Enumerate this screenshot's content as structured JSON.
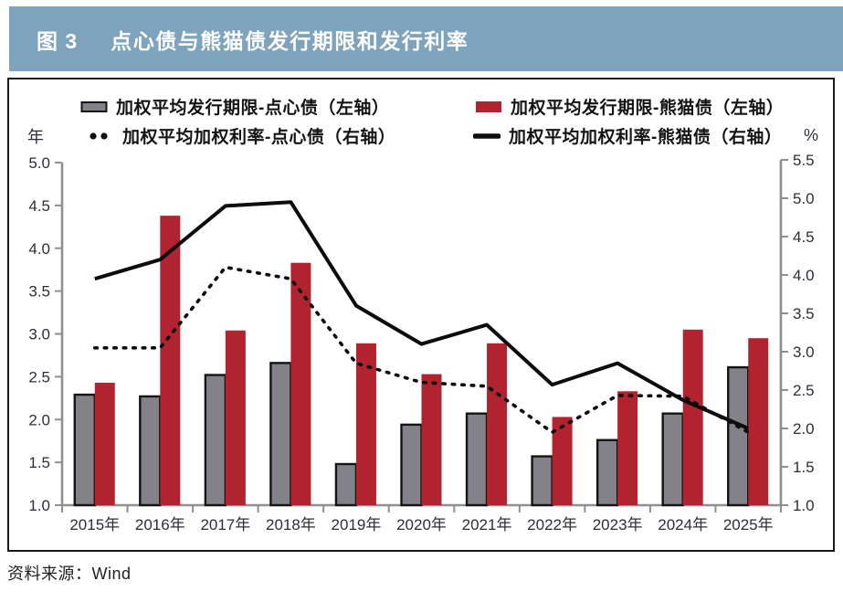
{
  "header": {
    "prefix": "图 3",
    "title": "点心债与熊猫债发行期限和发行利率",
    "bg_color": "#7DA3BD",
    "text_color": "#ffffff"
  },
  "source": {
    "label": "资料来源：Wind"
  },
  "chart_data": {
    "type": "bar+line",
    "title": "点心债与熊猫债发行期限和发行利率",
    "categories": [
      "2015年",
      "2016年",
      "2017年",
      "2018年",
      "2019年",
      "2020年",
      "2021年",
      "2022年",
      "2023年",
      "2024年",
      "2025年"
    ],
    "left_axis": {
      "unit": "年",
      "min": 1.0,
      "max": 5.0,
      "step": 0.5
    },
    "right_axis": {
      "unit": "%",
      "min": 1.0,
      "max": 5.5,
      "step": 0.5
    },
    "grid": false,
    "legend_position": "top",
    "series": [
      {
        "key": "dimsum-tenor",
        "name": "加权平均发行期限-点心债（左轴）",
        "type": "bar",
        "axis": "left",
        "color": "#828288",
        "outline": "#141414",
        "values": [
          2.29,
          2.27,
          2.52,
          2.66,
          1.48,
          1.94,
          2.07,
          1.57,
          1.76,
          2.07,
          2.61
        ]
      },
      {
        "key": "panda-tenor",
        "name": "加权平均发行期限-熊猫债（左轴）",
        "type": "bar",
        "axis": "left",
        "color": "#B1242F",
        "values": [
          2.43,
          4.38,
          3.04,
          3.83,
          2.89,
          2.53,
          2.89,
          2.03,
          2.33,
          3.05,
          2.95
        ]
      },
      {
        "key": "dimsum-rate",
        "name": "加权平均加权利率-点心债（右轴）",
        "type": "line",
        "line_style": "dashed",
        "axis": "right",
        "color": "#0d0d0d",
        "values": [
          3.05,
          3.05,
          4.1,
          3.95,
          2.85,
          2.6,
          2.55,
          1.95,
          2.43,
          2.42,
          1.95
        ]
      },
      {
        "key": "panda-rate",
        "name": "加权平均加权利率-熊猫债（右轴）",
        "type": "line",
        "line_style": "solid",
        "axis": "right",
        "color": "#0d0d0d",
        "values": [
          3.95,
          4.2,
          4.9,
          4.95,
          3.6,
          3.1,
          3.35,
          2.57,
          2.85,
          2.37,
          2.0
        ]
      }
    ]
  }
}
